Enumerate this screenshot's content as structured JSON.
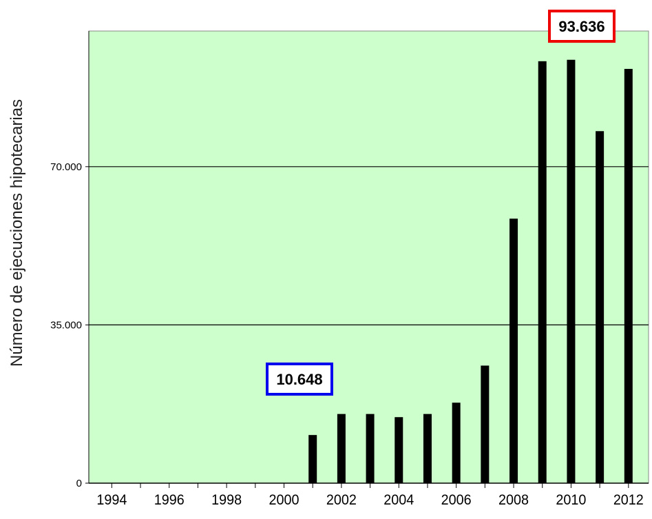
{
  "chart_data": {
    "type": "bar",
    "title": "",
    "xlabel": "",
    "ylabel": "Número  de  ejecuciones hipotecarias",
    "x_tick_labels": [
      "1994",
      "1996",
      "1998",
      "2000",
      "2002",
      "2004",
      "2006",
      "2008",
      "2010",
      "2012"
    ],
    "y_tick_labels": [
      "0",
      "35.000",
      "70.000"
    ],
    "y_ticks": [
      0,
      35000,
      70000
    ],
    "ylim": [
      0,
      100000
    ],
    "xlim": [
      1993.2,
      2012.7
    ],
    "grid": "horizontal",
    "categories": [
      "2001",
      "2002",
      "2003",
      "2004",
      "2005",
      "2006",
      "2007",
      "2008",
      "2009",
      "2010",
      "2011",
      "2012"
    ],
    "x": [
      2001,
      2002,
      2003,
      2004,
      2005,
      2006,
      2007,
      2008,
      2009,
      2010,
      2011,
      2012
    ],
    "values": [
      10648,
      15300,
      15300,
      14600,
      15300,
      17800,
      26000,
      58500,
      93319,
      93636,
      77854,
      91622
    ],
    "annotations": [
      {
        "text": "10.648",
        "x": 2001,
        "value": 10648,
        "color": "#0000ee"
      },
      {
        "text": "93.636",
        "x": 2010,
        "value": 93636,
        "color": "#ee0000"
      }
    ],
    "colors": {
      "plot_bg": "#ccffcc",
      "bar": "#000000",
      "grid": "#000000"
    }
  }
}
